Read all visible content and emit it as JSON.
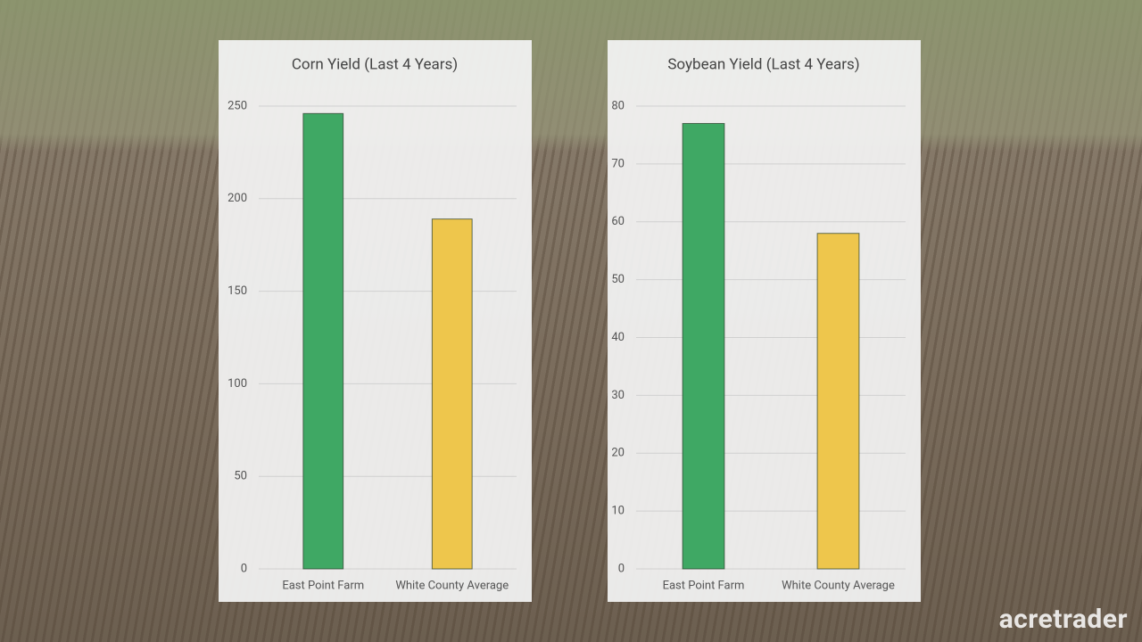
{
  "chart_data": [
    {
      "type": "bar",
      "title": "Corn Yield (Last 4 Years)",
      "categories": [
        "East Point Farm",
        "White County Average"
      ],
      "values": [
        246,
        189
      ],
      "colors": [
        "#3fa864",
        "#eec64c"
      ],
      "ylim": [
        0,
        250
      ],
      "yticks": [
        0,
        50,
        100,
        150,
        200,
        250
      ],
      "grid": true
    },
    {
      "type": "bar",
      "title": "Soybean Yield (Last 4 Years)",
      "categories": [
        "East Point Farm",
        "White County Average"
      ],
      "values": [
        77,
        58
      ],
      "colors": [
        "#3fa864",
        "#eec64c"
      ],
      "ylim": [
        0,
        80
      ],
      "yticks": [
        0,
        10,
        20,
        30,
        40,
        50,
        60,
        70,
        80
      ],
      "grid": true
    }
  ],
  "watermark": "acretrader"
}
